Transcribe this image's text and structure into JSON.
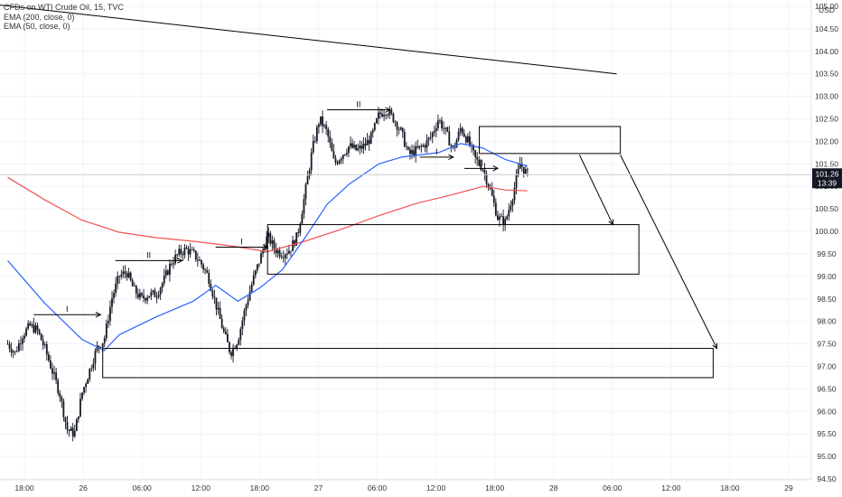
{
  "legend": {
    "symbol_line": "CFDs on WTI Crude Oil, 15, TVC",
    "ema200": "EMA (200, close, 0)",
    "ema50": "EMA (50, close, 0)"
  },
  "currency": "USD",
  "price_tag": {
    "price": "101.26",
    "countdown": "13:39"
  },
  "colors": {
    "candle": "#131722",
    "ema200": "#f05252",
    "ema50": "#2962ff",
    "box": "#000000",
    "grid": "#f0f3fa",
    "price_line": "#cccccc",
    "price_tag_bg": "#131722"
  },
  "chart_data": {
    "type": "candlestick",
    "x_ticks": [
      "18:00",
      "26",
      "06:00",
      "12:00",
      "18:00",
      "27",
      "06:00",
      "12:00",
      "18:00",
      "28",
      "06:00",
      "12:00",
      "18:00",
      "29"
    ],
    "y_ticks": [
      "105.00",
      "104.50",
      "104.00",
      "103.50",
      "103.00",
      "102.50",
      "102.00",
      "101.50",
      "101.00",
      "100.50",
      "100.00",
      "99.50",
      "99.00",
      "98.50",
      "98.00",
      "97.50",
      "97.00",
      "96.50",
      "96.00",
      "95.50",
      "95.00",
      "94.50"
    ],
    "ylim": [
      94.45,
      105.1
    ],
    "current_price": 101.26,
    "close_path": [
      [
        0,
        97.5
      ],
      [
        1,
        97.3
      ],
      [
        2,
        97.7
      ],
      [
        3,
        97.9
      ],
      [
        4,
        97.8
      ],
      [
        5,
        97.4
      ],
      [
        6,
        96.9
      ],
      [
        7,
        96.4
      ],
      [
        8,
        95.6
      ],
      [
        9,
        95.5
      ],
      [
        10,
        96.4
      ],
      [
        11,
        96.9
      ],
      [
        12,
        97.4
      ],
      [
        13,
        97.6
      ],
      [
        14,
        98.5
      ],
      [
        15,
        99.0
      ],
      [
        16,
        99.1
      ],
      [
        17,
        98.7
      ],
      [
        18,
        98.5
      ],
      [
        19,
        98.6
      ],
      [
        20,
        98.6
      ],
      [
        21,
        98.9
      ],
      [
        22,
        99.3
      ],
      [
        23,
        99.5
      ],
      [
        24,
        99.6
      ],
      [
        25,
        99.5
      ],
      [
        26,
        99.3
      ],
      [
        27,
        99.0
      ],
      [
        28,
        98.4
      ],
      [
        29,
        97.8
      ],
      [
        30,
        97.3
      ],
      [
        31,
        97.6
      ],
      [
        32,
        98.3
      ],
      [
        33,
        98.9
      ],
      [
        34,
        99.4
      ],
      [
        35,
        99.9
      ],
      [
        36,
        99.6
      ],
      [
        37,
        99.5
      ],
      [
        38,
        99.6
      ],
      [
        39,
        99.9
      ],
      [
        40,
        100.8
      ],
      [
        41,
        101.8
      ],
      [
        42,
        102.5
      ],
      [
        43,
        102.2
      ],
      [
        44,
        101.5
      ],
      [
        45,
        101.7
      ],
      [
        46,
        101.9
      ],
      [
        47,
        101.8
      ],
      [
        48,
        101.9
      ],
      [
        49,
        102.1
      ],
      [
        50,
        102.6
      ],
      [
        51,
        102.7
      ],
      [
        52,
        102.5
      ],
      [
        53,
        102.2
      ],
      [
        54,
        101.7
      ],
      [
        55,
        101.8
      ],
      [
        56,
        101.9
      ],
      [
        57,
        102.1
      ],
      [
        58,
        102.5
      ],
      [
        59,
        102.2
      ],
      [
        60,
        101.8
      ],
      [
        61,
        102.3
      ],
      [
        62,
        102.0
      ],
      [
        63,
        101.6
      ],
      [
        64,
        101.4
      ],
      [
        65,
        100.9
      ],
      [
        66,
        100.3
      ],
      [
        67,
        100.2
      ],
      [
        68,
        100.8
      ],
      [
        69,
        101.5
      ],
      [
        70,
        101.26
      ]
    ],
    "ema200": [
      [
        0,
        101.2
      ],
      [
        5,
        100.7
      ],
      [
        10,
        100.25
      ],
      [
        15,
        99.98
      ],
      [
        20,
        99.86
      ],
      [
        25,
        99.78
      ],
      [
        30,
        99.68
      ],
      [
        35,
        99.55
      ],
      [
        40,
        99.78
      ],
      [
        45,
        100.05
      ],
      [
        50,
        100.35
      ],
      [
        55,
        100.62
      ],
      [
        60,
        100.82
      ],
      [
        64,
        101.0
      ],
      [
        67,
        100.92
      ],
      [
        70,
        100.9
      ]
    ],
    "ema50": [
      [
        0,
        99.35
      ],
      [
        5,
        98.4
      ],
      [
        10,
        97.6
      ],
      [
        13,
        97.35
      ],
      [
        15,
        97.7
      ],
      [
        20,
        98.1
      ],
      [
        25,
        98.45
      ],
      [
        28,
        98.8
      ],
      [
        31,
        98.45
      ],
      [
        34,
        98.75
      ],
      [
        37,
        99.15
      ],
      [
        40,
        99.85
      ],
      [
        43,
        100.6
      ],
      [
        46,
        101.05
      ],
      [
        50,
        101.5
      ],
      [
        53,
        101.65
      ],
      [
        58,
        101.75
      ],
      [
        61,
        101.95
      ],
      [
        64,
        101.85
      ],
      [
        67,
        101.6
      ],
      [
        70,
        101.45
      ]
    ],
    "trendline": [
      [
        -5,
        105.1
      ],
      [
        82,
        103.5
      ]
    ],
    "boxes": [
      {
        "x1": 12.8,
        "x2": 95,
        "y1": 96.75,
        "y2": 97.4
      },
      {
        "x1": 35,
        "x2": 85,
        "y1": 99.05,
        "y2": 100.15
      },
      {
        "x1": 63.5,
        "x2": 82.5,
        "y1": 101.73,
        "y2": 102.33
      }
    ],
    "arrow_steps": [
      {
        "from": [
          3.5,
          98.15
        ],
        "to": [
          12.5,
          98.15
        ],
        "label": "I"
      },
      {
        "from": [
          14.5,
          99.35
        ],
        "to": [
          23.5,
          99.35
        ],
        "label": "II"
      },
      {
        "from": [
          28,
          99.65
        ],
        "to": [
          35,
          99.65
        ],
        "label": "I"
      },
      {
        "from": [
          43,
          102.7
        ],
        "to": [
          51.5,
          102.7
        ],
        "label": "II"
      },
      {
        "from": [
          55.5,
          101.65
        ],
        "to": [
          60,
          101.65
        ],
        "label": "I"
      },
      {
        "from": [
          61.5,
          101.4
        ],
        "to": [
          66,
          101.4
        ],
        "label": "II"
      }
    ],
    "arrows_down": [
      {
        "from": [
          77,
          101.7
        ],
        "to": [
          81.5,
          100.15
        ]
      },
      {
        "from": [
          82.5,
          101.7
        ],
        "to": [
          95.5,
          97.4
        ]
      }
    ]
  }
}
